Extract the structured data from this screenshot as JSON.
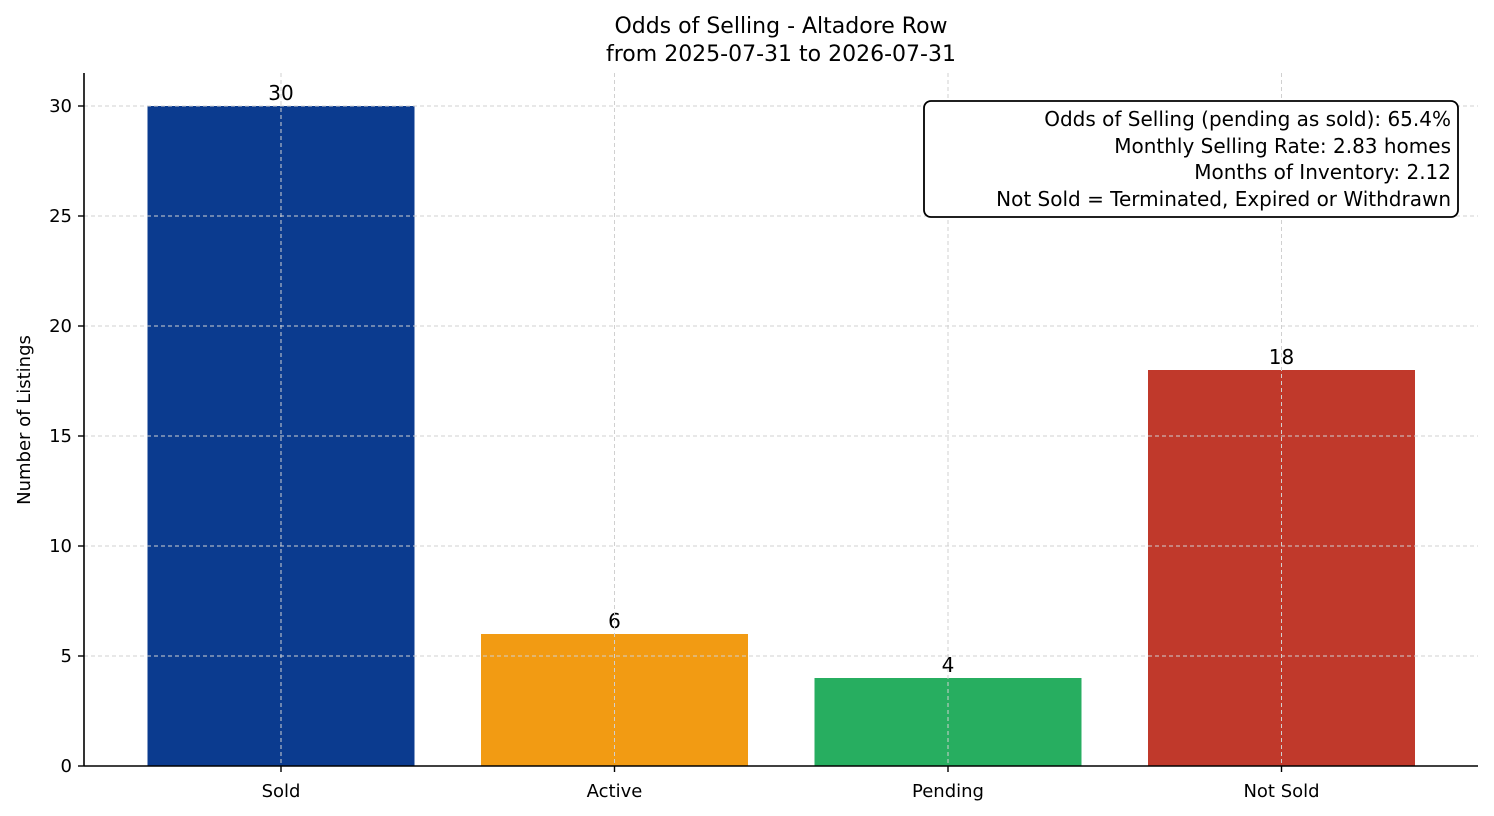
{
  "chart_data": {
    "type": "bar",
    "title": "Odds of Selling - Altadore Row",
    "subtitle": "from 2025-07-31 to 2026-07-31",
    "xlabel": "",
    "ylabel": "Number of Listings",
    "categories": [
      "Sold",
      "Active",
      "Pending",
      "Not Sold"
    ],
    "values": [
      30,
      6,
      4,
      18
    ],
    "colors": [
      "#0b3b8f",
      "#f29b13",
      "#27ae60",
      "#c0392b"
    ],
    "ylim": [
      0,
      31.5
    ],
    "yticks": [
      0,
      5,
      10,
      15,
      20,
      25,
      30
    ],
    "grid": true,
    "annotation": {
      "placement": "top-right",
      "lines": [
        "Odds of Selling (pending as sold): 65.4%",
        "Monthly Selling Rate: 2.83 homes",
        "Months of Inventory: 2.12",
        "Not Sold = Terminated, Expired or Withdrawn"
      ]
    }
  }
}
